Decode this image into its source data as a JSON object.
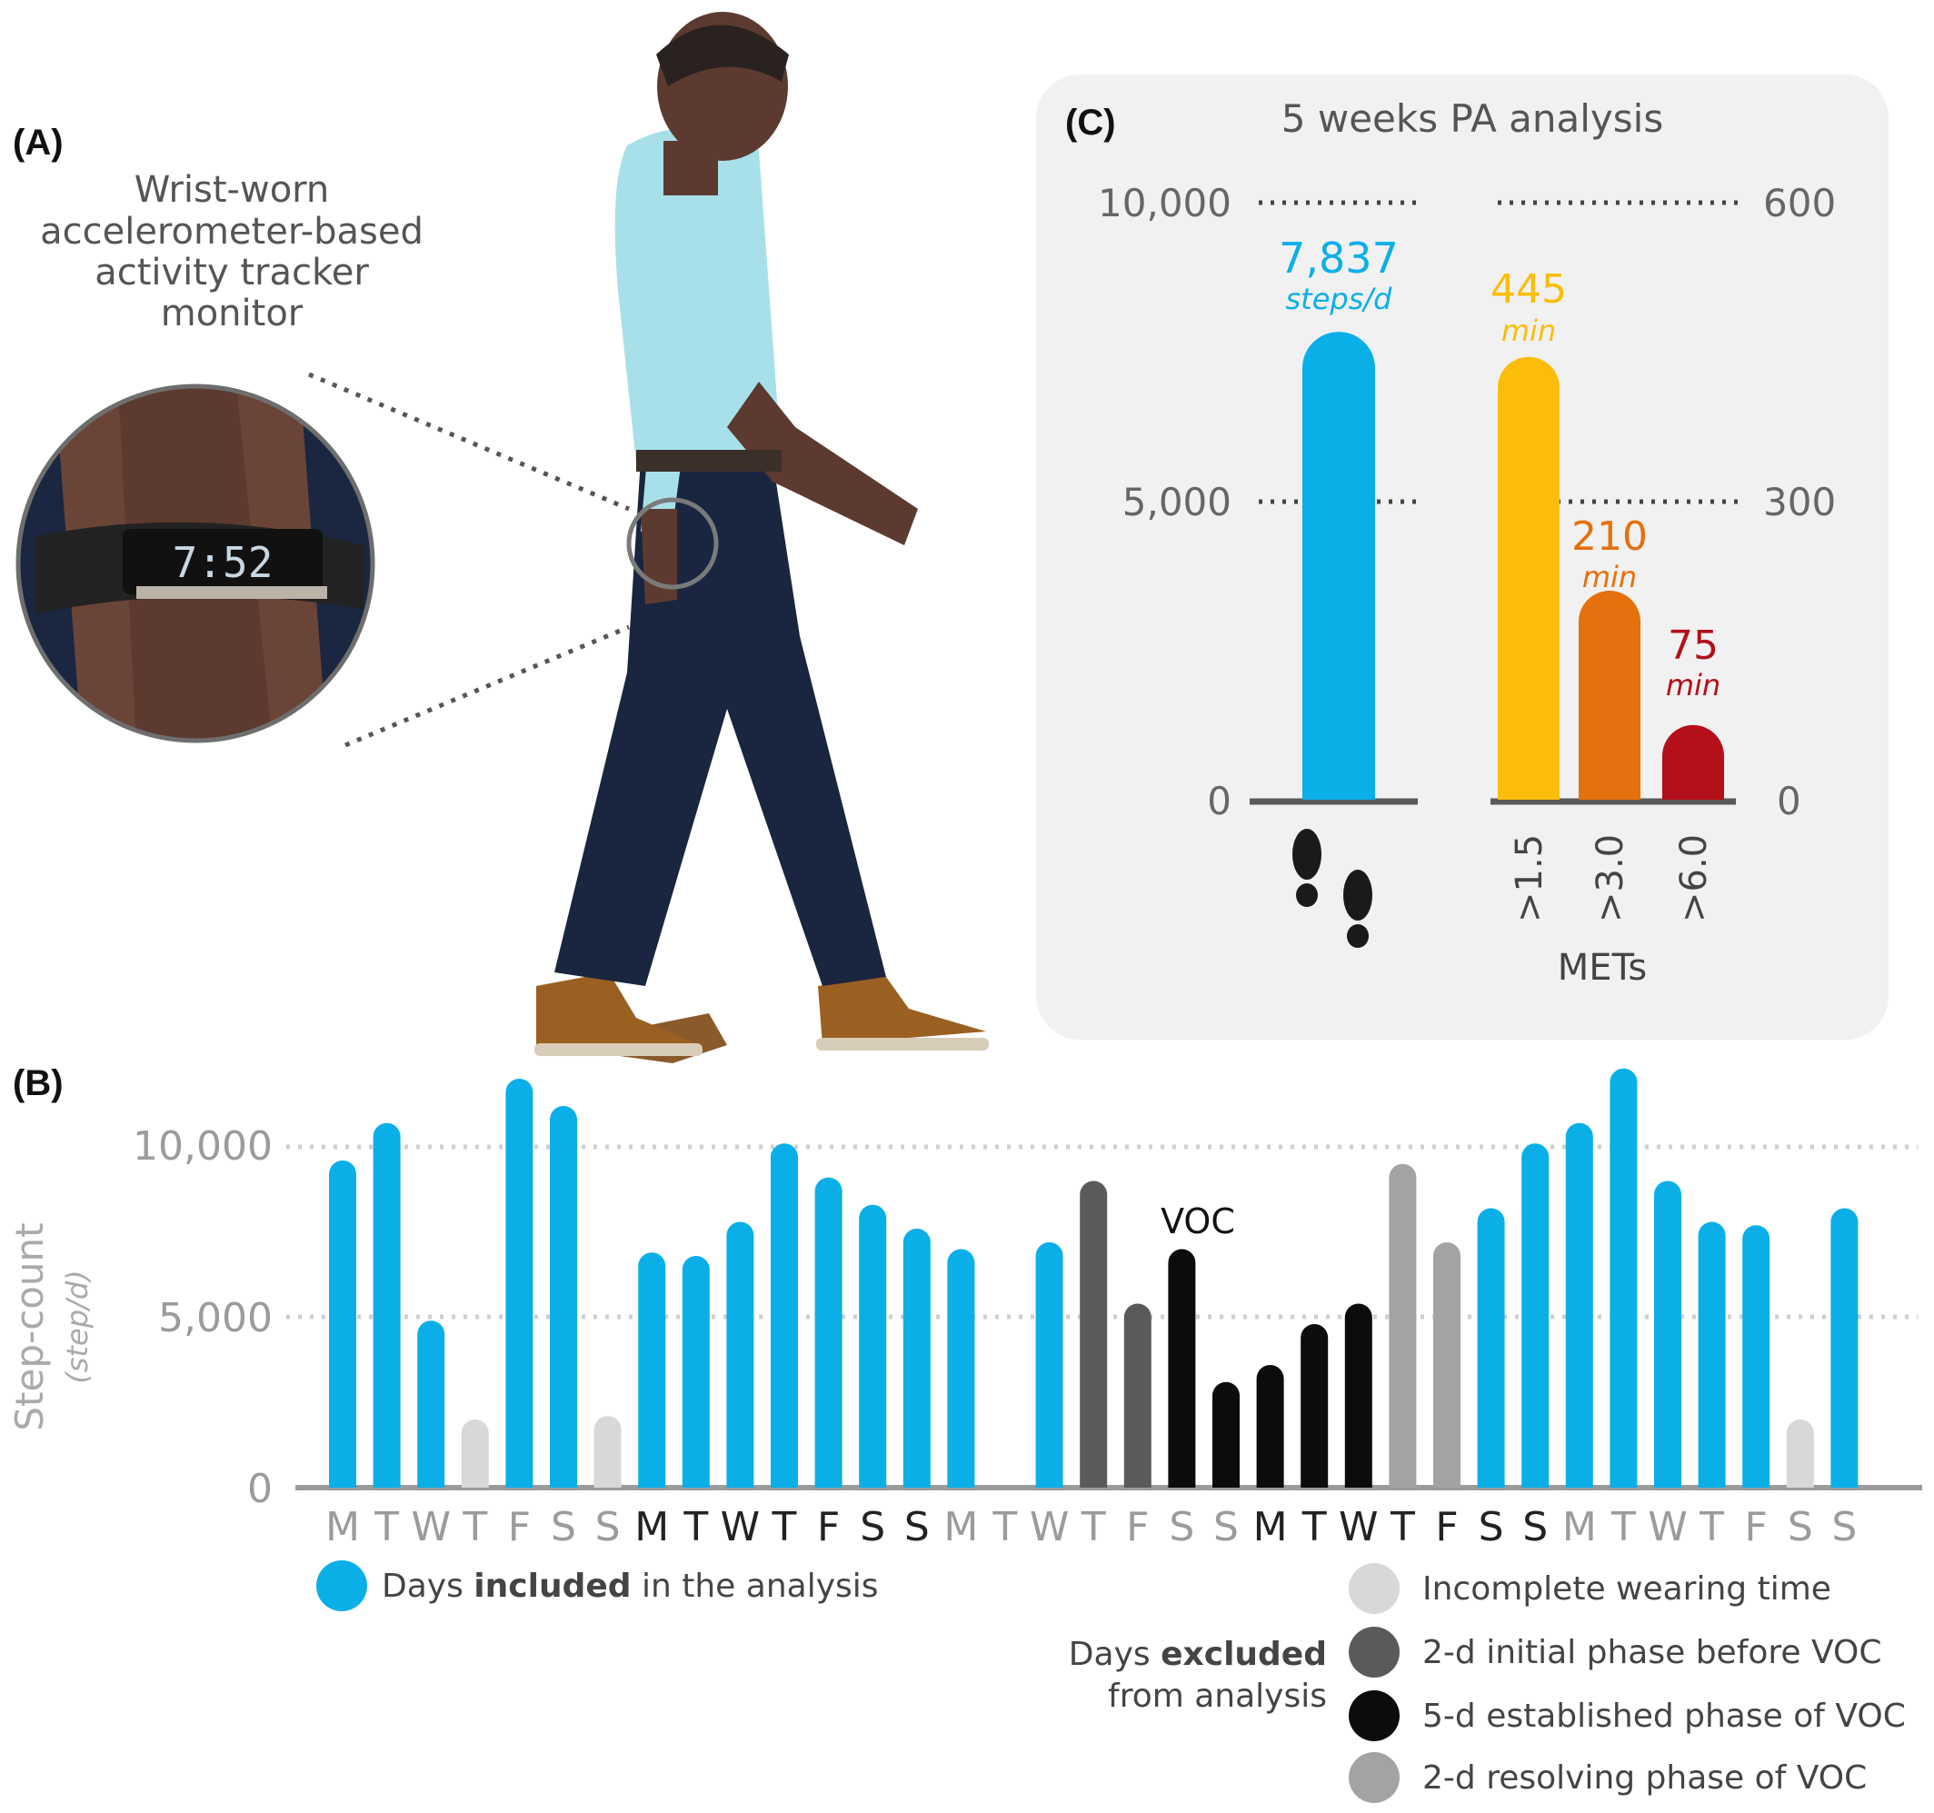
{
  "panels": {
    "a": {
      "label": "(A)",
      "caption_lines": [
        "Wrist-worn",
        "accelerometer-based",
        "activity tracker",
        "monitor"
      ]
    },
    "b": {
      "label": "(B)"
    },
    "c": {
      "label": "(C)"
    }
  },
  "colors": {
    "included": "#0aafe8",
    "incomplete": "#d8d8d8",
    "initial": "#5a5a5a",
    "established": "#0c0c0c",
    "resolving": "#a3a3a3",
    "light_mets": "#fbbd0a",
    "moderate_mets": "#e5700e",
    "vigorous_mets": "#b3101a",
    "panel_bg": "#f1f1f1"
  },
  "chart_data": [
    {
      "type": "bar",
      "title": "",
      "xlabel": "",
      "ylabel": "Step-count",
      "ylabel_unit": "(step/d)",
      "ylim": [
        0,
        12500
      ],
      "yticks": [
        "0",
        "5,000",
        "10,000"
      ],
      "ytick_values": [
        0,
        5000,
        10000
      ],
      "grid": true,
      "annotation": "VOC",
      "annotation_day_index": 25,
      "days": [
        {
          "label": "M",
          "value": 9600,
          "status": "included"
        },
        {
          "label": "T",
          "value": 10700,
          "status": "included"
        },
        {
          "label": "W",
          "value": 4900,
          "status": "included"
        },
        {
          "label": "T",
          "value": 2000,
          "status": "incomplete"
        },
        {
          "label": "F",
          "value": 12000,
          "status": "included"
        },
        {
          "label": "S",
          "value": 11200,
          "status": "included"
        },
        {
          "label": "S",
          "value": 2100,
          "status": "incomplete"
        },
        {
          "label": "M",
          "value": 6900,
          "status": "included"
        },
        {
          "label": "T",
          "value": 6800,
          "status": "included"
        },
        {
          "label": "W",
          "value": 7800,
          "status": "included"
        },
        {
          "label": "T",
          "value": 10100,
          "status": "included"
        },
        {
          "label": "F",
          "value": 9100,
          "status": "included"
        },
        {
          "label": "S",
          "value": 8300,
          "status": "included"
        },
        {
          "label": "S",
          "value": 7600,
          "status": "included"
        },
        {
          "label": "M",
          "value": 7000,
          "status": "included"
        },
        {
          "label": "T",
          "value": null,
          "status": "none"
        },
        {
          "label": "W",
          "value": 7200,
          "status": "included"
        },
        {
          "label": "T",
          "value": 9000,
          "status": "initial"
        },
        {
          "label": "F",
          "value": 5400,
          "status": "initial"
        },
        {
          "label": "S",
          "value": 7000,
          "status": "established"
        },
        {
          "label": "S",
          "value": 3100,
          "status": "established"
        },
        {
          "label": "M",
          "value": 3600,
          "status": "established"
        },
        {
          "label": "T",
          "value": 4800,
          "status": "established"
        },
        {
          "label": "W",
          "value": 5400,
          "status": "established"
        },
        {
          "label": "T",
          "value": 9500,
          "status": "resolving"
        },
        {
          "label": "F",
          "value": 7200,
          "status": "resolving"
        },
        {
          "label": "S",
          "value": 8200,
          "status": "included"
        },
        {
          "label": "S",
          "value": 10100,
          "status": "included"
        },
        {
          "label": "M",
          "value": 10700,
          "status": "included"
        },
        {
          "label": "T",
          "value": 12300,
          "status": "included"
        },
        {
          "label": "W",
          "value": 9000,
          "status": "included"
        },
        {
          "label": "T",
          "value": 7800,
          "status": "included"
        },
        {
          "label": "F",
          "value": 7700,
          "status": "included"
        },
        {
          "label": "S",
          "value": 2000,
          "status": "incomplete"
        },
        {
          "label": "S",
          "value": 8200,
          "status": "included"
        }
      ],
      "day_label_colors": [
        "#9b9b9b",
        "#9b9b9b",
        "#9b9b9b",
        "#9b9b9b",
        "#9b9b9b",
        "#9b9b9b",
        "#9b9b9b",
        "#222222",
        "#222222",
        "#222222",
        "#222222",
        "#222222",
        "#222222",
        "#222222",
        "#9b9b9b",
        "#9b9b9b",
        "#9b9b9b",
        "#9b9b9b",
        "#9b9b9b",
        "#9b9b9b",
        "#9b9b9b",
        "#222222",
        "#222222",
        "#222222",
        "#222222",
        "#222222",
        "#222222",
        "#222222",
        "#9b9b9b",
        "#9b9b9b",
        "#9b9b9b",
        "#9b9b9b",
        "#9b9b9b",
        "#9b9b9b",
        "#9b9b9b"
      ]
    },
    {
      "type": "bar",
      "title": "5 weeks PA analysis",
      "left_axis": {
        "ylim": [
          0,
          10000
        ],
        "ticks": [
          "0",
          "5,000",
          "10,000"
        ]
      },
      "right_axis": {
        "ylim": [
          0,
          600
        ],
        "ticks": [
          "0",
          "300",
          "600"
        ]
      },
      "steps": {
        "value": 7837,
        "value_label": "7,837",
        "unit": "steps/d",
        "color": "#0aafe8"
      },
      "mets": {
        "xlabel": "METs",
        "categories": [
          ">1.5",
          ">3.0",
          ">6.0"
        ],
        "values": [
          445,
          210,
          75
        ],
        "value_labels": [
          "445",
          "210",
          "75"
        ],
        "unit": "min",
        "colors": [
          "#fbbd0a",
          "#e5700e",
          "#b3101a"
        ]
      }
    }
  ],
  "legend": {
    "included_text_before": "Days ",
    "included_text_bold": "included",
    "included_text_after": " in the analysis",
    "excluded_line1_before": "Days ",
    "excluded_line1_bold": "excluded",
    "excluded_line2": "from analysis",
    "items": [
      {
        "key": "incomplete",
        "text": "Incomplete wearing time"
      },
      {
        "key": "initial",
        "text": "2-d initial phase before VOC"
      },
      {
        "key": "established",
        "text": "5-d established phase of VOC"
      },
      {
        "key": "resolving",
        "text": "2-d resolving phase of VOC"
      }
    ]
  }
}
